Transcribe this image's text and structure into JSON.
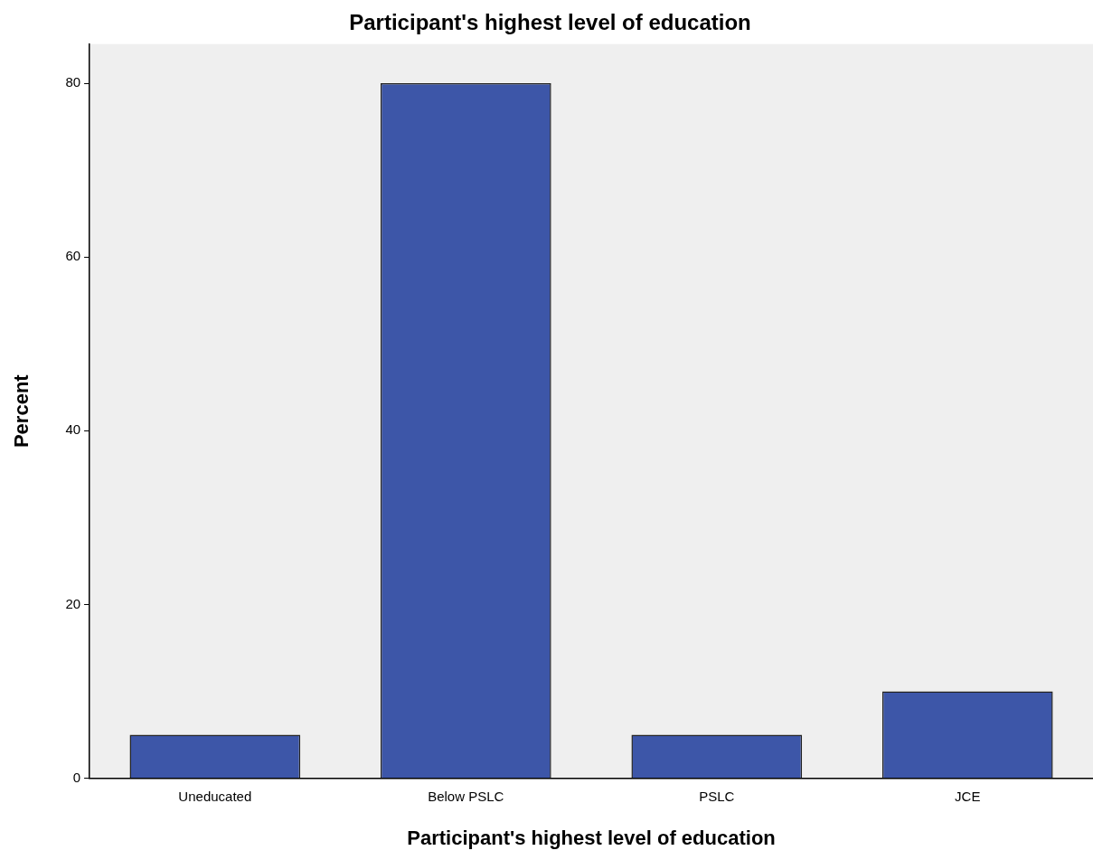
{
  "chart_data": {
    "type": "bar",
    "title": "Participant's highest level of education",
    "xlabel": "Participant's highest level of education",
    "ylabel": "Percent",
    "categories": [
      "Uneducated",
      "Below PSLC",
      "PSLC",
      "JCE"
    ],
    "values": [
      5,
      80,
      5,
      10
    ],
    "color": "#3d56a8",
    "ylim": [
      0,
      84.5
    ],
    "yticks": [
      0,
      20,
      40,
      60,
      80
    ],
    "grid": false,
    "legend": false
  }
}
